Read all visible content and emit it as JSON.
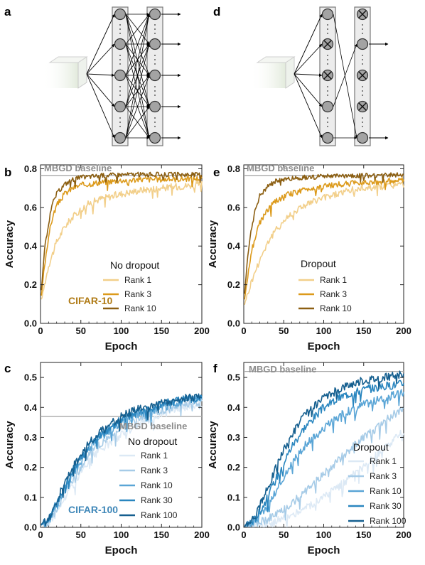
{
  "panels": {
    "a": "a",
    "b": "b",
    "c": "c",
    "d": "d",
    "e": "e",
    "f": "f"
  },
  "colors": {
    "cifar10": [
      "#f2cf8a",
      "#dc9a1b",
      "#8c5f12"
    ],
    "cifar10_label": "#b07b16",
    "cifar100": [
      "#dce9f5",
      "#a6cbe7",
      "#5aa5d6",
      "#2a86bf",
      "#155f8f"
    ],
    "cifar100_label": "#3f87b8",
    "baseline": "#a8a8a8"
  },
  "diagram_icons": {
    "a": [
      "input-block-icon",
      "neuron-icon",
      "arrow-icon"
    ],
    "d": [
      "input-block-icon",
      "neuron-icon",
      "dropped-neuron-icon",
      "arrow-icon"
    ]
  },
  "chart_data": [
    {
      "panel": "b",
      "type": "line",
      "xlabel": "Epoch",
      "ylabel": "Accuracy",
      "xlim": [
        0,
        200
      ],
      "ylim": [
        0,
        0.82
      ],
      "xticks": [
        0,
        50,
        100,
        150,
        200
      ],
      "yticks": [
        0.0,
        0.2,
        0.4,
        0.6,
        0.8
      ],
      "xtick_labels": [
        "0",
        "50",
        "100",
        "150",
        "200"
      ],
      "ytick_labels": [
        "0.0",
        "0.2",
        "0.4",
        "0.6",
        "0.8"
      ],
      "baseline": {
        "label": "MBGD baseline",
        "value": 0.765
      },
      "legend_title": "No dropout",
      "legend_position": "lower-right",
      "annotation": "CIFAR-10",
      "series": [
        {
          "name": "Rank 1",
          "points": [
            [
              1,
              0.12
            ],
            [
              10,
              0.3
            ],
            [
              20,
              0.42
            ],
            [
              30,
              0.5
            ],
            [
              40,
              0.55
            ],
            [
              50,
              0.59
            ],
            [
              60,
              0.62
            ],
            [
              75,
              0.645
            ],
            [
              100,
              0.67
            ],
            [
              125,
              0.69
            ],
            [
              150,
              0.7
            ],
            [
              175,
              0.71
            ],
            [
              200,
              0.72
            ]
          ]
        },
        {
          "name": "Rank 3",
          "points": [
            [
              1,
              0.14
            ],
            [
              5,
              0.3
            ],
            [
              10,
              0.45
            ],
            [
              15,
              0.55
            ],
            [
              20,
              0.61
            ],
            [
              30,
              0.67
            ],
            [
              40,
              0.7
            ],
            [
              50,
              0.715
            ],
            [
              75,
              0.73
            ],
            [
              100,
              0.74
            ],
            [
              125,
              0.745
            ],
            [
              150,
              0.745
            ],
            [
              200,
              0.75
            ]
          ]
        },
        {
          "name": "Rank 10",
          "points": [
            [
              1,
              0.17
            ],
            [
              5,
              0.38
            ],
            [
              10,
              0.52
            ],
            [
              15,
              0.62
            ],
            [
              20,
              0.67
            ],
            [
              30,
              0.72
            ],
            [
              40,
              0.745
            ],
            [
              50,
              0.755
            ],
            [
              75,
              0.765
            ],
            [
              100,
              0.77
            ],
            [
              150,
              0.77
            ],
            [
              200,
              0.77
            ]
          ]
        }
      ]
    },
    {
      "panel": "e",
      "type": "line",
      "xlabel": "Epoch",
      "ylabel": "Accuracy",
      "xlim": [
        0,
        200
      ],
      "ylim": [
        0,
        0.82
      ],
      "xticks": [
        0,
        50,
        100,
        150,
        200
      ],
      "yticks": [
        0.0,
        0.2,
        0.4,
        0.6,
        0.8
      ],
      "xtick_labels": [
        "0",
        "50",
        "100",
        "150",
        "200"
      ],
      "ytick_labels": [
        "0.0",
        "0.2",
        "0.4",
        "0.6",
        "0.8"
      ],
      "baseline": {
        "label": "MBGD baseline",
        "value": 0.765
      },
      "legend_title": "Dropout",
      "legend_position": "lower-right",
      "series": [
        {
          "name": "Rank 1",
          "points": [
            [
              1,
              0.1
            ],
            [
              10,
              0.22
            ],
            [
              20,
              0.33
            ],
            [
              30,
              0.42
            ],
            [
              40,
              0.48
            ],
            [
              50,
              0.53
            ],
            [
              60,
              0.57
            ],
            [
              75,
              0.61
            ],
            [
              100,
              0.65
            ],
            [
              125,
              0.68
            ],
            [
              150,
              0.7
            ],
            [
              175,
              0.71
            ],
            [
              200,
              0.72
            ]
          ]
        },
        {
          "name": "Rank 3",
          "points": [
            [
              1,
              0.12
            ],
            [
              5,
              0.25
            ],
            [
              10,
              0.38
            ],
            [
              20,
              0.52
            ],
            [
              30,
              0.59
            ],
            [
              40,
              0.63
            ],
            [
              50,
              0.66
            ],
            [
              75,
              0.69
            ],
            [
              100,
              0.71
            ],
            [
              125,
              0.72
            ],
            [
              150,
              0.73
            ],
            [
              200,
              0.74
            ]
          ]
        },
        {
          "name": "Rank 10",
          "points": [
            [
              1,
              0.15
            ],
            [
              5,
              0.35
            ],
            [
              10,
              0.5
            ],
            [
              15,
              0.6
            ],
            [
              20,
              0.66
            ],
            [
              30,
              0.71
            ],
            [
              40,
              0.735
            ],
            [
              50,
              0.745
            ],
            [
              75,
              0.755
            ],
            [
              100,
              0.76
            ],
            [
              150,
              0.765
            ],
            [
              200,
              0.77
            ]
          ]
        }
      ]
    },
    {
      "panel": "c",
      "type": "line",
      "xlabel": "Epoch",
      "ylabel": "Accuracy",
      "xlim": [
        0,
        200
      ],
      "ylim": [
        0,
        0.55
      ],
      "xticks": [
        0,
        50,
        100,
        150,
        200
      ],
      "yticks": [
        0.0,
        0.1,
        0.2,
        0.3,
        0.4,
        0.5
      ],
      "xtick_labels": [
        "0",
        "50",
        "100",
        "150",
        "200"
      ],
      "ytick_labels": [
        "0.0",
        "0.1",
        "0.2",
        "0.3",
        "0.4",
        "0.5"
      ],
      "baseline": {
        "label": "MBGD baseline",
        "value": 0.37
      },
      "legend_title": "No dropout",
      "legend_position": "lower-right",
      "annotation": "CIFAR-100",
      "series": [
        {
          "name": "Rank 1",
          "points": [
            [
              1,
              0.01
            ],
            [
              10,
              0.015
            ],
            [
              20,
              0.05
            ],
            [
              30,
              0.1
            ],
            [
              40,
              0.14
            ],
            [
              50,
              0.18
            ],
            [
              60,
              0.22
            ],
            [
              75,
              0.26
            ],
            [
              100,
              0.31
            ],
            [
              125,
              0.35
            ],
            [
              150,
              0.38
            ],
            [
              175,
              0.4
            ],
            [
              200,
              0.41
            ]
          ]
        },
        {
          "name": "Rank 3",
          "points": [
            [
              1,
              0.01
            ],
            [
              10,
              0.02
            ],
            [
              20,
              0.06
            ],
            [
              30,
              0.12
            ],
            [
              40,
              0.16
            ],
            [
              50,
              0.2
            ],
            [
              60,
              0.24
            ],
            [
              75,
              0.28
            ],
            [
              100,
              0.33
            ],
            [
              125,
              0.37
            ],
            [
              150,
              0.39
            ],
            [
              175,
              0.41
            ],
            [
              200,
              0.42
            ]
          ]
        },
        {
          "name": "Rank 10",
          "points": [
            [
              1,
              0.01
            ],
            [
              10,
              0.02
            ],
            [
              20,
              0.07
            ],
            [
              30,
              0.13
            ],
            [
              40,
              0.18
            ],
            [
              50,
              0.22
            ],
            [
              60,
              0.26
            ],
            [
              75,
              0.3
            ],
            [
              100,
              0.35
            ],
            [
              125,
              0.38
            ],
            [
              150,
              0.4
            ],
            [
              175,
              0.42
            ],
            [
              200,
              0.43
            ]
          ]
        },
        {
          "name": "Rank 30",
          "points": [
            [
              1,
              0.01
            ],
            [
              10,
              0.025
            ],
            [
              20,
              0.08
            ],
            [
              30,
              0.14
            ],
            [
              40,
              0.19
            ],
            [
              50,
              0.23
            ],
            [
              60,
              0.27
            ],
            [
              75,
              0.31
            ],
            [
              100,
              0.36
            ],
            [
              125,
              0.39
            ],
            [
              150,
              0.41
            ],
            [
              175,
              0.425
            ],
            [
              200,
              0.43
            ]
          ]
        },
        {
          "name": "Rank 100",
          "points": [
            [
              1,
              0.01
            ],
            [
              10,
              0.025
            ],
            [
              20,
              0.085
            ],
            [
              30,
              0.15
            ],
            [
              40,
              0.2
            ],
            [
              50,
              0.24
            ],
            [
              60,
              0.28
            ],
            [
              75,
              0.32
            ],
            [
              100,
              0.37
            ],
            [
              125,
              0.4
            ],
            [
              150,
              0.415
            ],
            [
              175,
              0.43
            ],
            [
              200,
              0.435
            ]
          ]
        }
      ]
    },
    {
      "panel": "f",
      "type": "line",
      "xlabel": "Epoch",
      "ylabel": "Accuracy",
      "xlim": [
        0,
        200
      ],
      "ylim": [
        0,
        0.55
      ],
      "xticks": [
        0,
        50,
        100,
        150,
        200
      ],
      "yticks": [
        0.0,
        0.1,
        0.2,
        0.3,
        0.4,
        0.5
      ],
      "xtick_labels": [
        "0",
        "50",
        "100",
        "150",
        "200"
      ],
      "ytick_labels": [
        "0.0",
        "0.1",
        "0.2",
        "0.3",
        "0.4",
        "0.5"
      ],
      "baseline": {
        "label": "MBGD baseline",
        "value": 0.52
      },
      "legend_title": "Dropout",
      "legend_position": "lower-right",
      "series": [
        {
          "name": "Rank 1",
          "points": [
            [
              1,
              0.005
            ],
            [
              20,
              0.01
            ],
            [
              40,
              0.02
            ],
            [
              60,
              0.04
            ],
            [
              80,
              0.07
            ],
            [
              100,
              0.1
            ],
            [
              125,
              0.15
            ],
            [
              150,
              0.2
            ],
            [
              175,
              0.26
            ],
            [
              200,
              0.32
            ]
          ]
        },
        {
          "name": "Rank 3",
          "points": [
            [
              1,
              0.005
            ],
            [
              20,
              0.015
            ],
            [
              40,
              0.04
            ],
            [
              60,
              0.08
            ],
            [
              80,
              0.13
            ],
            [
              100,
              0.18
            ],
            [
              125,
              0.24
            ],
            [
              150,
              0.3
            ],
            [
              175,
              0.35
            ],
            [
              200,
              0.4
            ]
          ]
        },
        {
          "name": "Rank 10",
          "points": [
            [
              1,
              0.005
            ],
            [
              15,
              0.02
            ],
            [
              30,
              0.07
            ],
            [
              45,
              0.14
            ],
            [
              60,
              0.21
            ],
            [
              75,
              0.27
            ],
            [
              100,
              0.33
            ],
            [
              125,
              0.38
            ],
            [
              150,
              0.41
            ],
            [
              175,
              0.43
            ],
            [
              200,
              0.45
            ]
          ]
        },
        {
          "name": "Rank 30",
          "points": [
            [
              1,
              0.005
            ],
            [
              15,
              0.03
            ],
            [
              30,
              0.1
            ],
            [
              45,
              0.19
            ],
            [
              60,
              0.27
            ],
            [
              75,
              0.33
            ],
            [
              100,
              0.4
            ],
            [
              125,
              0.44
            ],
            [
              150,
              0.46
            ],
            [
              175,
              0.47
            ],
            [
              200,
              0.48
            ]
          ]
        },
        {
          "name": "Rank 100",
          "points": [
            [
              1,
              0.005
            ],
            [
              15,
              0.04
            ],
            [
              30,
              0.13
            ],
            [
              45,
              0.23
            ],
            [
              60,
              0.31
            ],
            [
              75,
              0.37
            ],
            [
              100,
              0.43
            ],
            [
              125,
              0.47
            ],
            [
              150,
              0.49
            ],
            [
              175,
              0.5
            ],
            [
              200,
              0.51
            ]
          ]
        }
      ]
    }
  ]
}
